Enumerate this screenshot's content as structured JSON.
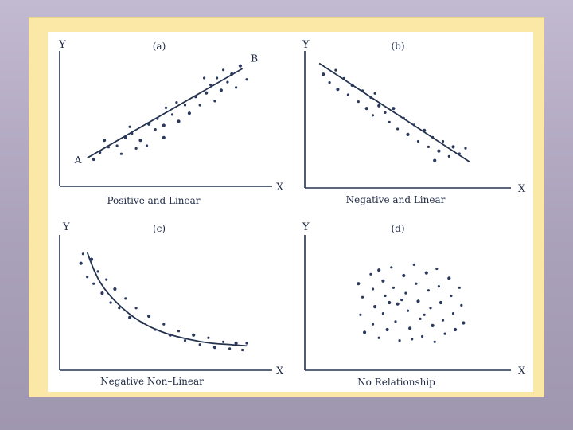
{
  "chart_data": [
    {
      "type": "scatter",
      "panel_tag": "(a)",
      "caption": "Positive and Linear",
      "xlabel": "X",
      "ylabel": "Y",
      "xlim": [
        0,
        10
      ],
      "ylim": [
        0,
        10
      ],
      "grid": false,
      "point_labels": [
        {
          "text": "A",
          "x": 0.7,
          "y": 1.7
        },
        {
          "text": "B",
          "x": 9.0,
          "y": 9.2
        }
      ],
      "trend": {
        "kind": "line",
        "points": [
          [
            1.3,
            2.1
          ],
          [
            8.6,
            8.7
          ]
        ]
      },
      "points": [
        [
          1.6,
          2.0
        ],
        [
          1.9,
          2.5
        ],
        [
          2.3,
          2.9
        ],
        [
          2.1,
          3.4
        ],
        [
          2.7,
          3.0
        ],
        [
          2.9,
          2.4
        ],
        [
          3.1,
          3.6
        ],
        [
          3.4,
          3.9
        ],
        [
          3.3,
          4.4
        ],
        [
          3.8,
          3.4
        ],
        [
          3.6,
          2.8
        ],
        [
          4.1,
          3.0
        ],
        [
          4.2,
          4.6
        ],
        [
          4.5,
          4.2
        ],
        [
          4.6,
          5.0
        ],
        [
          4.9,
          4.5
        ],
        [
          5.0,
          5.8
        ],
        [
          5.3,
          5.3
        ],
        [
          5.6,
          4.8
        ],
        [
          5.5,
          6.2
        ],
        [
          5.9,
          6.0
        ],
        [
          6.1,
          5.4
        ],
        [
          6.4,
          6.6
        ],
        [
          6.6,
          6.0
        ],
        [
          6.9,
          6.9
        ],
        [
          7.1,
          7.5
        ],
        [
          7.3,
          6.3
        ],
        [
          7.6,
          7.1
        ],
        [
          7.4,
          8.0
        ],
        [
          7.9,
          7.7
        ],
        [
          8.1,
          8.3
        ],
        [
          8.3,
          7.3
        ],
        [
          7.7,
          8.6
        ],
        [
          8.5,
          8.9
        ],
        [
          8.8,
          7.9
        ],
        [
          6.8,
          8.0
        ],
        [
          4.9,
          3.6
        ]
      ]
    },
    {
      "type": "scatter",
      "panel_tag": "(b)",
      "caption": "Negative and Linear",
      "xlabel": "X",
      "ylabel": "Y",
      "xlim": [
        0,
        10
      ],
      "ylim": [
        0,
        10
      ],
      "grid": false,
      "trend": {
        "kind": "line",
        "points": [
          [
            0.7,
            9.1
          ],
          [
            8.0,
            1.9
          ]
        ]
      },
      "points": [
        [
          0.9,
          8.3
        ],
        [
          1.2,
          7.7
        ],
        [
          1.5,
          8.6
        ],
        [
          1.6,
          7.2
        ],
        [
          1.9,
          8.0
        ],
        [
          2.1,
          6.8
        ],
        [
          2.3,
          7.5
        ],
        [
          2.6,
          6.3
        ],
        [
          2.8,
          7.1
        ],
        [
          3.0,
          5.8
        ],
        [
          3.2,
          6.6
        ],
        [
          3.3,
          5.3
        ],
        [
          3.6,
          6.0
        ],
        [
          3.9,
          5.5
        ],
        [
          4.1,
          4.8
        ],
        [
          4.3,
          5.8
        ],
        [
          4.5,
          4.3
        ],
        [
          4.8,
          5.1
        ],
        [
          5.0,
          3.9
        ],
        [
          5.3,
          4.6
        ],
        [
          5.5,
          3.4
        ],
        [
          5.8,
          4.2
        ],
        [
          6.0,
          3.0
        ],
        [
          6.2,
          3.7
        ],
        [
          6.5,
          2.7
        ],
        [
          6.7,
          3.4
        ],
        [
          7.0,
          2.3
        ],
        [
          7.2,
          3.0
        ],
        [
          7.5,
          2.5
        ],
        [
          7.8,
          2.9
        ],
        [
          6.3,
          2.0
        ],
        [
          3.4,
          6.9
        ]
      ]
    },
    {
      "type": "scatter",
      "panel_tag": "(c)",
      "caption": "Negative Non–Linear",
      "xlabel": "X",
      "ylabel": "Y",
      "xlim": [
        0,
        10
      ],
      "ylim": [
        0,
        10
      ],
      "grid": false,
      "trend": {
        "kind": "curve",
        "points": [
          [
            1.3,
            8.7
          ],
          [
            1.6,
            7.4
          ],
          [
            2.0,
            6.2
          ],
          [
            2.6,
            5.1
          ],
          [
            3.3,
            4.1
          ],
          [
            4.1,
            3.3
          ],
          [
            5.0,
            2.7
          ],
          [
            6.0,
            2.3
          ],
          [
            7.0,
            2.0
          ],
          [
            8.0,
            1.9
          ],
          [
            8.8,
            1.8
          ]
        ]
      },
      "points": [
        [
          1.0,
          7.9
        ],
        [
          1.1,
          8.6
        ],
        [
          1.3,
          6.9
        ],
        [
          1.5,
          8.2
        ],
        [
          1.6,
          6.4
        ],
        [
          1.8,
          7.3
        ],
        [
          2.0,
          5.7
        ],
        [
          2.2,
          6.7
        ],
        [
          2.4,
          5.0
        ],
        [
          2.6,
          6.0
        ],
        [
          2.8,
          4.6
        ],
        [
          3.1,
          5.3
        ],
        [
          3.3,
          3.9
        ],
        [
          3.6,
          4.6
        ],
        [
          3.9,
          3.5
        ],
        [
          4.2,
          4.0
        ],
        [
          4.5,
          3.0
        ],
        [
          4.9,
          3.4
        ],
        [
          5.2,
          2.6
        ],
        [
          5.6,
          2.9
        ],
        [
          5.9,
          2.2
        ],
        [
          6.3,
          2.6
        ],
        [
          6.6,
          1.9
        ],
        [
          7.0,
          2.4
        ],
        [
          7.3,
          1.7
        ],
        [
          7.7,
          2.1
        ],
        [
          8.0,
          1.6
        ],
        [
          8.3,
          2.0
        ],
        [
          8.6,
          1.5
        ],
        [
          8.8,
          2.0
        ]
      ]
    },
    {
      "type": "scatter",
      "panel_tag": "(d)",
      "caption": "No Relationship",
      "xlabel": "X",
      "ylabel": "Y",
      "xlim": [
        0,
        10
      ],
      "ylim": [
        0,
        10
      ],
      "grid": false,
      "points": [
        [
          2.6,
          6.4
        ],
        [
          2.8,
          5.4
        ],
        [
          2.7,
          4.1
        ],
        [
          2.9,
          2.8
        ],
        [
          3.2,
          7.1
        ],
        [
          3.3,
          6.0
        ],
        [
          3.4,
          4.7
        ],
        [
          3.3,
          3.4
        ],
        [
          3.6,
          2.4
        ],
        [
          3.8,
          6.6
        ],
        [
          3.9,
          5.5
        ],
        [
          3.8,
          4.2
        ],
        [
          4.0,
          3.0
        ],
        [
          4.2,
          7.6
        ],
        [
          4.3,
          6.1
        ],
        [
          4.5,
          4.9
        ],
        [
          4.4,
          3.6
        ],
        [
          4.6,
          2.2
        ],
        [
          4.8,
          7.0
        ],
        [
          4.9,
          5.7
        ],
        [
          5.0,
          4.4
        ],
        [
          5.1,
          3.1
        ],
        [
          5.3,
          7.8
        ],
        [
          5.4,
          6.4
        ],
        [
          5.5,
          5.1
        ],
        [
          5.6,
          3.8
        ],
        [
          5.7,
          2.5
        ],
        [
          5.9,
          7.2
        ],
        [
          6.0,
          5.9
        ],
        [
          6.1,
          4.6
        ],
        [
          6.2,
          3.3
        ],
        [
          6.4,
          7.5
        ],
        [
          6.5,
          6.2
        ],
        [
          6.6,
          5.0
        ],
        [
          6.7,
          3.7
        ],
        [
          6.8,
          2.7
        ],
        [
          7.0,
          6.8
        ],
        [
          7.1,
          5.5
        ],
        [
          7.2,
          4.2
        ],
        [
          7.3,
          3.0
        ],
        [
          7.5,
          6.1
        ],
        [
          7.6,
          4.8
        ],
        [
          7.7,
          3.5
        ],
        [
          4.7,
          5.2
        ],
        [
          5.8,
          4.1
        ],
        [
          4.1,
          5.0
        ],
        [
          5.2,
          2.3
        ],
        [
          6.3,
          2.1
        ],
        [
          3.6,
          7.4
        ]
      ]
    }
  ]
}
